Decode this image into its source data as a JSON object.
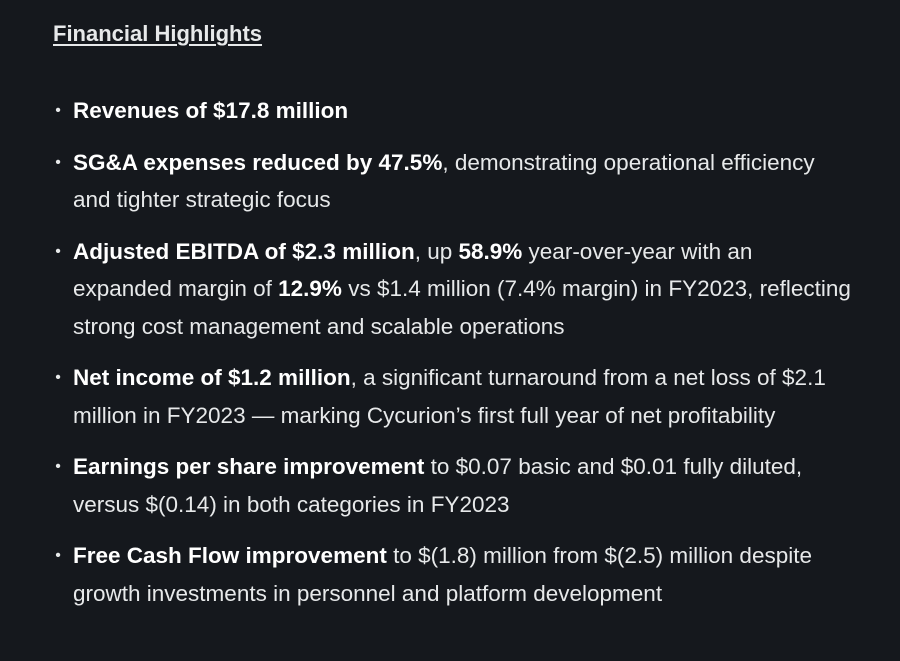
{
  "title": "Financial Highlights",
  "items": [
    {
      "parts": [
        {
          "b": true,
          "t": "Revenues of $17.8 million"
        }
      ]
    },
    {
      "parts": [
        {
          "b": true,
          "t": "SG&A expenses reduced by 47.5%"
        },
        {
          "b": false,
          "t": ", demonstrating operational efficiency and tighter strategic focus"
        }
      ]
    },
    {
      "parts": [
        {
          "b": true,
          "t": "Adjusted EBITDA of $2.3 million"
        },
        {
          "b": false,
          "t": ", up "
        },
        {
          "b": true,
          "t": "58.9%"
        },
        {
          "b": false,
          "t": " year-over-year with an expanded margin of "
        },
        {
          "b": true,
          "t": "12.9%"
        },
        {
          "b": false,
          "t": " vs $1.4 million (7.4% margin) in FY2023, reflecting strong cost management and scalable operations"
        }
      ]
    },
    {
      "parts": [
        {
          "b": true,
          "t": "Net income of $1.2 million"
        },
        {
          "b": false,
          "t": ", a significant turnaround from a net loss of $2.1 million in FY2023 — marking Cycurion’s first full year of net profitability"
        }
      ]
    },
    {
      "parts": [
        {
          "b": true,
          "t": "Earnings per share improvement"
        },
        {
          "b": false,
          "t": " to $0.07 basic and $0.01 fully diluted, versus $(0.14) in both categories in FY2023"
        }
      ]
    },
    {
      "parts": [
        {
          "b": true,
          "t": "Free Cash Flow improvement"
        },
        {
          "b": false,
          "t": " to $(1.8) million from $(2.5) million despite growth investments in personnel and platform development"
        }
      ]
    }
  ]
}
